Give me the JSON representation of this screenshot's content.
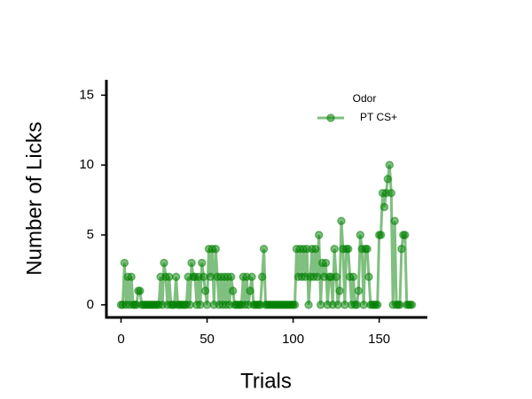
{
  "chart_data": {
    "type": "line",
    "xlabel": "Trials",
    "ylabel": "Number of Licks",
    "x": [
      0,
      1,
      2,
      3,
      4,
      5,
      6,
      7,
      8,
      9,
      10,
      11,
      12,
      13,
      14,
      15,
      16,
      17,
      18,
      19,
      20,
      21,
      22,
      23,
      24,
      25,
      26,
      27,
      28,
      29,
      30,
      31,
      32,
      33,
      34,
      35,
      36,
      37,
      38,
      39,
      40,
      41,
      42,
      43,
      44,
      45,
      46,
      47,
      48,
      49,
      50,
      51,
      52,
      53,
      54,
      55,
      56,
      57,
      58,
      59,
      60,
      61,
      62,
      63,
      64,
      65,
      66,
      67,
      68,
      69,
      70,
      71,
      72,
      73,
      74,
      75,
      76,
      77,
      78,
      79,
      80,
      81,
      82,
      83,
      84,
      85,
      86,
      87,
      88,
      89,
      90,
      91,
      92,
      93,
      94,
      95,
      96,
      97,
      98,
      99,
      100,
      101,
      102,
      103,
      104,
      105,
      106,
      107,
      108,
      109,
      110,
      111,
      112,
      113,
      114,
      115,
      116,
      117,
      118,
      119,
      120,
      121,
      122,
      123,
      124,
      125,
      126,
      127,
      128,
      129,
      130,
      131,
      132,
      133,
      134,
      135,
      136,
      137,
      138,
      139,
      140,
      141,
      142,
      143,
      144,
      145,
      146,
      147,
      148,
      149,
      150,
      151,
      152,
      153,
      154,
      155,
      156,
      157,
      158,
      159,
      160,
      161,
      162,
      163,
      164,
      165,
      166,
      167,
      168,
      169
    ],
    "series": [
      {
        "name": "PT CS+",
        "color": "#008000",
        "values": [
          0,
          0,
          3,
          0,
          2,
          0,
          2,
          0,
          0,
          0,
          1,
          1,
          0,
          0,
          0,
          0,
          0,
          0,
          0,
          0,
          0,
          0,
          0,
          2,
          0,
          3,
          2,
          0,
          2,
          0,
          0,
          0,
          2,
          0,
          0,
          0,
          0,
          0,
          0,
          2,
          0,
          3,
          2,
          2,
          0,
          2,
          0,
          3,
          2,
          1,
          0,
          4,
          2,
          4,
          0,
          4,
          2,
          0,
          2,
          0,
          2,
          0,
          2,
          0,
          2,
          1,
          0,
          0,
          0,
          0,
          0,
          2,
          0,
          2,
          0,
          1,
          2,
          0,
          0,
          0,
          0,
          0,
          2,
          4,
          0,
          0,
          0,
          0,
          0,
          0,
          0,
          0,
          0,
          0,
          0,
          0,
          0,
          0,
          0,
          0,
          0,
          0,
          4,
          2,
          4,
          2,
          4,
          2,
          4,
          0,
          2,
          4,
          2,
          4,
          2,
          5,
          0,
          3,
          2,
          3,
          0,
          2,
          2,
          0,
          4,
          2,
          0,
          1,
          6,
          4,
          0,
          4,
          4,
          2,
          0,
          2,
          0,
          0,
          1,
          5,
          4,
          0,
          4,
          4,
          2,
          0,
          0,
          0,
          0,
          0,
          5,
          5,
          8,
          7,
          8,
          9,
          10,
          8,
          0,
          6,
          0,
          0,
          0,
          4,
          5,
          5,
          0,
          0,
          0,
          0
        ]
      }
    ],
    "legend_title": "Odor",
    "legend": "upper right",
    "xlim": [
      -8.5,
      178
    ],
    "ylim": [
      -0.9,
      16.1
    ],
    "xticks": [
      0,
      50,
      100,
      150
    ],
    "yticks": [
      0,
      5,
      10,
      15
    ]
  }
}
